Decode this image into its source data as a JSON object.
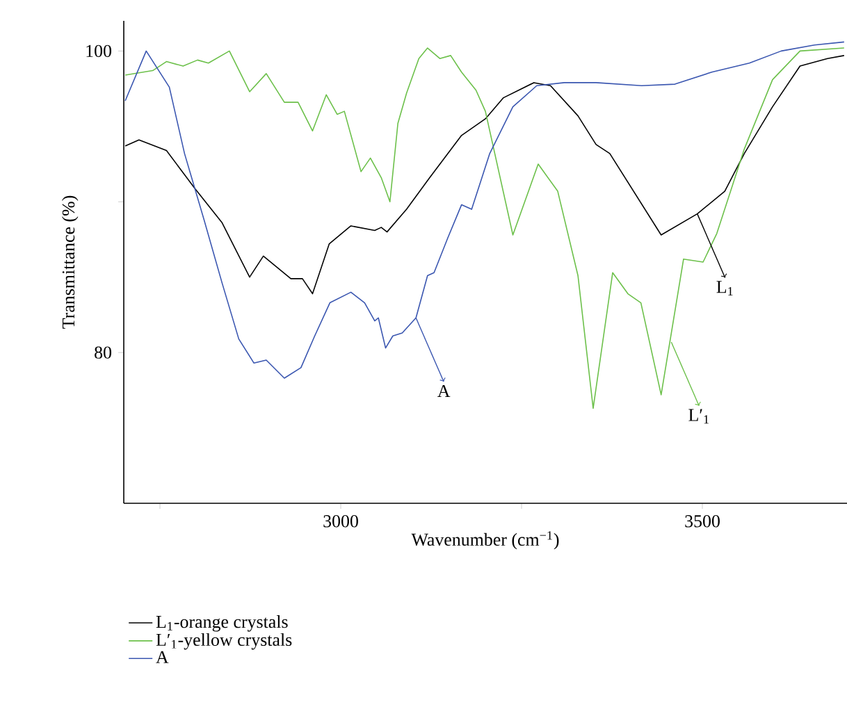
{
  "chart_data": {
    "type": "line",
    "xlabel": "Wavenumber (cm$^{−1}$)",
    "ylabel": "Transmittance (%)",
    "xlim": [
      2700,
      3700
    ],
    "ylim": [
      70,
      102
    ],
    "xticks": [
      {
        "value": 2750,
        "label": null
      },
      3000,
      {
        "value": 3250,
        "label": null
      },
      3500
    ],
    "yticks": [
      80,
      {
        "value": 90,
        "label": null
      },
      100
    ],
    "legend": "bottom left",
    "marker": "none",
    "line_style": "solid",
    "grid": false,
    "series": [
      {
        "name": "L$_{1}$-orange crystals",
        "color": "#000000",
        "x": [
          2702,
          2721,
          2759,
          2798,
          2836,
          2874,
          2893,
          2931,
          2947,
          2961,
          2984,
          3014,
          3047,
          3056,
          3064,
          3091,
          3123,
          3167,
          3200,
          3225,
          3267,
          3290,
          3328,
          3353,
          3372,
          3443,
          3493,
          3531,
          3558,
          3597,
          3635,
          3673,
          3696
        ],
        "values": [
          93.7,
          94.1,
          93.4,
          90.9,
          88.6,
          85.0,
          86.4,
          84.9,
          84.9,
          83.9,
          87.2,
          88.4,
          88.1,
          88.3,
          88.0,
          89.5,
          91.6,
          94.4,
          95.5,
          96.9,
          97.9,
          97.7,
          95.7,
          93.8,
          93.2,
          87.8,
          89.2,
          90.7,
          93.2,
          96.3,
          99.0,
          99.5,
          99.7
        ]
      },
      {
        "name": "L′$_{1}$-yellow crystals",
        "color": "#6cc04a",
        "x": [
          2702,
          2740,
          2759,
          2782,
          2802,
          2817,
          2846,
          2874,
          2897,
          2922,
          2941,
          2961,
          2980,
          2995,
          3005,
          3028,
          3041,
          3056,
          3068,
          3079,
          3091,
          3108,
          3120,
          3137,
          3152,
          3167,
          3187,
          3200,
          3238,
          3273,
          3300,
          3328,
          3349,
          3376,
          3397,
          3415,
          3443,
          3474,
          3501,
          3520,
          3558,
          3597,
          3635,
          3696
        ],
        "values": [
          98.4,
          98.7,
          99.3,
          99.0,
          99.4,
          99.2,
          100.0,
          97.3,
          98.5,
          96.6,
          96.6,
          94.7,
          97.1,
          95.8,
          96.0,
          92.0,
          92.9,
          91.6,
          90.0,
          95.2,
          97.2,
          99.5,
          100.2,
          99.5,
          99.7,
          98.6,
          97.4,
          96.0,
          87.8,
          92.5,
          90.7,
          85.1,
          76.3,
          85.3,
          83.9,
          83.3,
          77.2,
          86.2,
          86.0,
          87.9,
          93.5,
          98.1,
          100.0,
          100.2
        ]
      },
      {
        "name": "A",
        "color": "#3a56b0",
        "x": [
          2702,
          2731,
          2763,
          2784,
          2811,
          2836,
          2859,
          2880,
          2897,
          2922,
          2945,
          2964,
          2985,
          3014,
          3033,
          3047,
          3052,
          3062,
          3072,
          3085,
          3104,
          3120,
          3129,
          3148,
          3167,
          3181,
          3206,
          3238,
          3271,
          3309,
          3353,
          3416,
          3462,
          3513,
          3565,
          3609,
          3655,
          3696
        ],
        "values": [
          96.7,
          100.0,
          97.6,
          93.2,
          88.8,
          84.6,
          80.9,
          79.3,
          79.5,
          78.3,
          79.0,
          81.1,
          83.3,
          84.0,
          83.3,
          82.1,
          82.3,
          80.3,
          81.1,
          81.3,
          82.3,
          85.1,
          85.3,
          87.6,
          89.8,
          89.5,
          93.2,
          96.3,
          97.7,
          97.9,
          97.9,
          97.7,
          97.8,
          98.6,
          99.2,
          100.0,
          100.4,
          100.6
        ]
      }
    ],
    "annotations": [
      {
        "text": "L$_{1}$",
        "x": 3493,
        "y": 89.2
      },
      {
        "text": "L′$_{1}$",
        "x": 3457,
        "y": 80.7
      },
      {
        "text": "A",
        "x": 3104,
        "y": 82.3
      }
    ]
  }
}
